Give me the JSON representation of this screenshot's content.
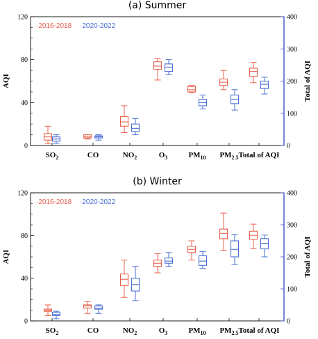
{
  "chart_data": [
    {
      "type": "box",
      "title": "(a) Summer",
      "ylabel": "AQI",
      "y2label": "Total of AQI",
      "ylim": [
        0,
        120
      ],
      "y2lim": [
        0,
        400
      ],
      "yticks": [
        0,
        40,
        80,
        120
      ],
      "y2ticks": [
        0,
        100,
        200,
        300,
        400
      ],
      "categories": [
        "SO",
        "CO",
        "NO",
        "O",
        "PM",
        "PM",
        "Total of AQI"
      ],
      "category_subscripts": [
        "2",
        "",
        "2",
        "3",
        "10",
        "2.5",
        ""
      ],
      "legend_placement": "top-left",
      "series": [
        {
          "name": "2016-2018",
          "color": "#e8604c",
          "boxes": [
            {
              "min": 2,
              "q1": 5,
              "median": 8,
              "q3": 11,
              "max": 18
            },
            {
              "min": 6,
              "q1": 7,
              "median": 8,
              "q3": 10,
              "max": 10
            },
            {
              "min": 12,
              "q1": 18,
              "median": 22,
              "q3": 27,
              "max": 37
            },
            {
              "min": 61,
              "q1": 71,
              "median": 74,
              "q3": 78,
              "max": 81
            },
            {
              "min": 49,
              "q1": 50,
              "median": 52,
              "q3": 55,
              "max": 56
            },
            {
              "min": 52,
              "q1": 56,
              "median": 59,
              "q3": 62,
              "max": 70
            },
            {
              "min": 195,
              "q1": 215,
              "median": 230,
              "q3": 240,
              "max": 258
            }
          ]
        },
        {
          "name": "2020-2022",
          "color": "#4a6fd4",
          "boxes": [
            {
              "min": 2,
              "q1": 4,
              "median": 6,
              "q3": 8,
              "max": 10
            },
            {
              "min": 5,
              "q1": 7,
              "median": 8,
              "q3": 9,
              "max": 10
            },
            {
              "min": 10,
              "q1": 13,
              "median": 16,
              "q3": 20,
              "max": 25
            },
            {
              "min": 66,
              "q1": 69,
              "median": 73,
              "q3": 76,
              "max": 80
            },
            {
              "min": 34,
              "q1": 37,
              "median": 40,
              "q3": 43,
              "max": 47
            },
            {
              "min": 33,
              "q1": 39,
              "median": 43,
              "q3": 47,
              "max": 52
            },
            {
              "min": 160,
              "q1": 177,
              "median": 190,
              "q3": 200,
              "max": 212
            }
          ]
        }
      ]
    },
    {
      "type": "box",
      "title": "(b) Winter",
      "ylabel": "AQI",
      "y2label": "Total of AQI",
      "ylim": [
        0,
        120
      ],
      "y2lim": [
        0,
        400
      ],
      "yticks": [
        0,
        40,
        80,
        120
      ],
      "y2ticks": [
        0,
        100,
        200,
        300,
        400
      ],
      "categories": [
        "SO",
        "CO",
        "NO",
        "O",
        "PM",
        "PM",
        "Total of AQI"
      ],
      "category_subscripts": [
        "2",
        "",
        "2",
        "3",
        "10",
        "2.5",
        ""
      ],
      "legend_placement": "top-left",
      "series": [
        {
          "name": "2016-2018",
          "color": "#e8604c",
          "boxes": [
            {
              "min": 5,
              "q1": 9,
              "median": 10,
              "q3": 11,
              "max": 15
            },
            {
              "min": 7,
              "q1": 12,
              "median": 14,
              "q3": 15,
              "max": 18
            },
            {
              "min": 22,
              "q1": 33,
              "median": 39,
              "q3": 44,
              "max": 57
            },
            {
              "min": 45,
              "q1": 51,
              "median": 54,
              "q3": 57,
              "max": 63
            },
            {
              "min": 57,
              "q1": 64,
              "median": 67,
              "q3": 70,
              "max": 75
            },
            {
              "min": 66,
              "q1": 77,
              "median": 82,
              "q3": 86,
              "max": 101
            },
            {
              "min": 225,
              "q1": 255,
              "median": 267,
              "q3": 280,
              "max": 302
            }
          ]
        },
        {
          "name": "2020-2022",
          "color": "#4a6fd4",
          "boxes": [
            {
              "min": 2,
              "q1": 5,
              "median": 6,
              "q3": 8,
              "max": 9
            },
            {
              "min": 7,
              "q1": 11,
              "median": 12,
              "q3": 14,
              "max": 15
            },
            {
              "min": 19,
              "q1": 28,
              "median": 34,
              "q3": 40,
              "max": 51
            },
            {
              "min": 51,
              "q1": 54,
              "median": 56,
              "q3": 59,
              "max": 64
            },
            {
              "min": 49,
              "q1": 52,
              "median": 56,
              "q3": 61,
              "max": 65
            },
            {
              "min": 53,
              "q1": 60,
              "median": 67,
              "q3": 75,
              "max": 81
            },
            {
              "min": 200,
              "q1": 225,
              "median": 242,
              "q3": 257,
              "max": 268
            }
          ]
        }
      ]
    }
  ]
}
